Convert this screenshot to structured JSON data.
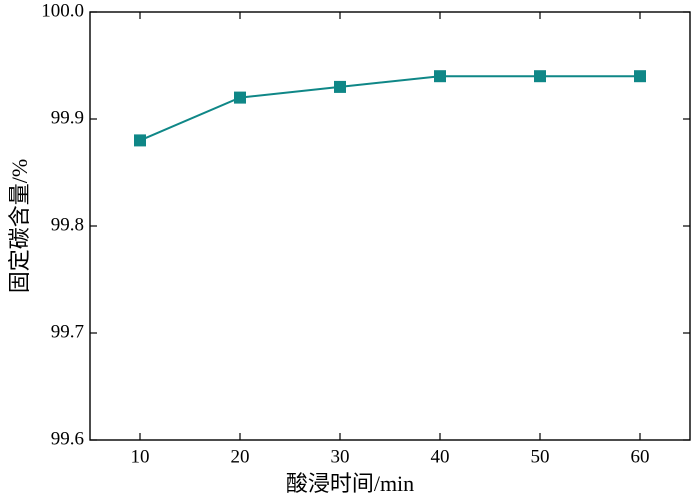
{
  "chart_data": {
    "type": "line",
    "xlabel": "酸浸时间/min",
    "ylabel": "固定碳含量/%",
    "x": [
      10,
      20,
      30,
      40,
      50,
      60
    ],
    "series": [
      {
        "color": "#0f8787",
        "values": [
          99.88,
          99.92,
          99.93,
          99.94,
          99.94,
          99.94
        ]
      }
    ],
    "xlim": [
      5,
      65
    ],
    "xticks": [
      10,
      20,
      30,
      40,
      50,
      60
    ],
    "ylim": [
      99.6,
      100.0
    ],
    "yticks": [
      99.6,
      99.7,
      99.8,
      99.9,
      {
        "value": 100,
        "label": "100.0"
      }
    ],
    "grid": false
  }
}
